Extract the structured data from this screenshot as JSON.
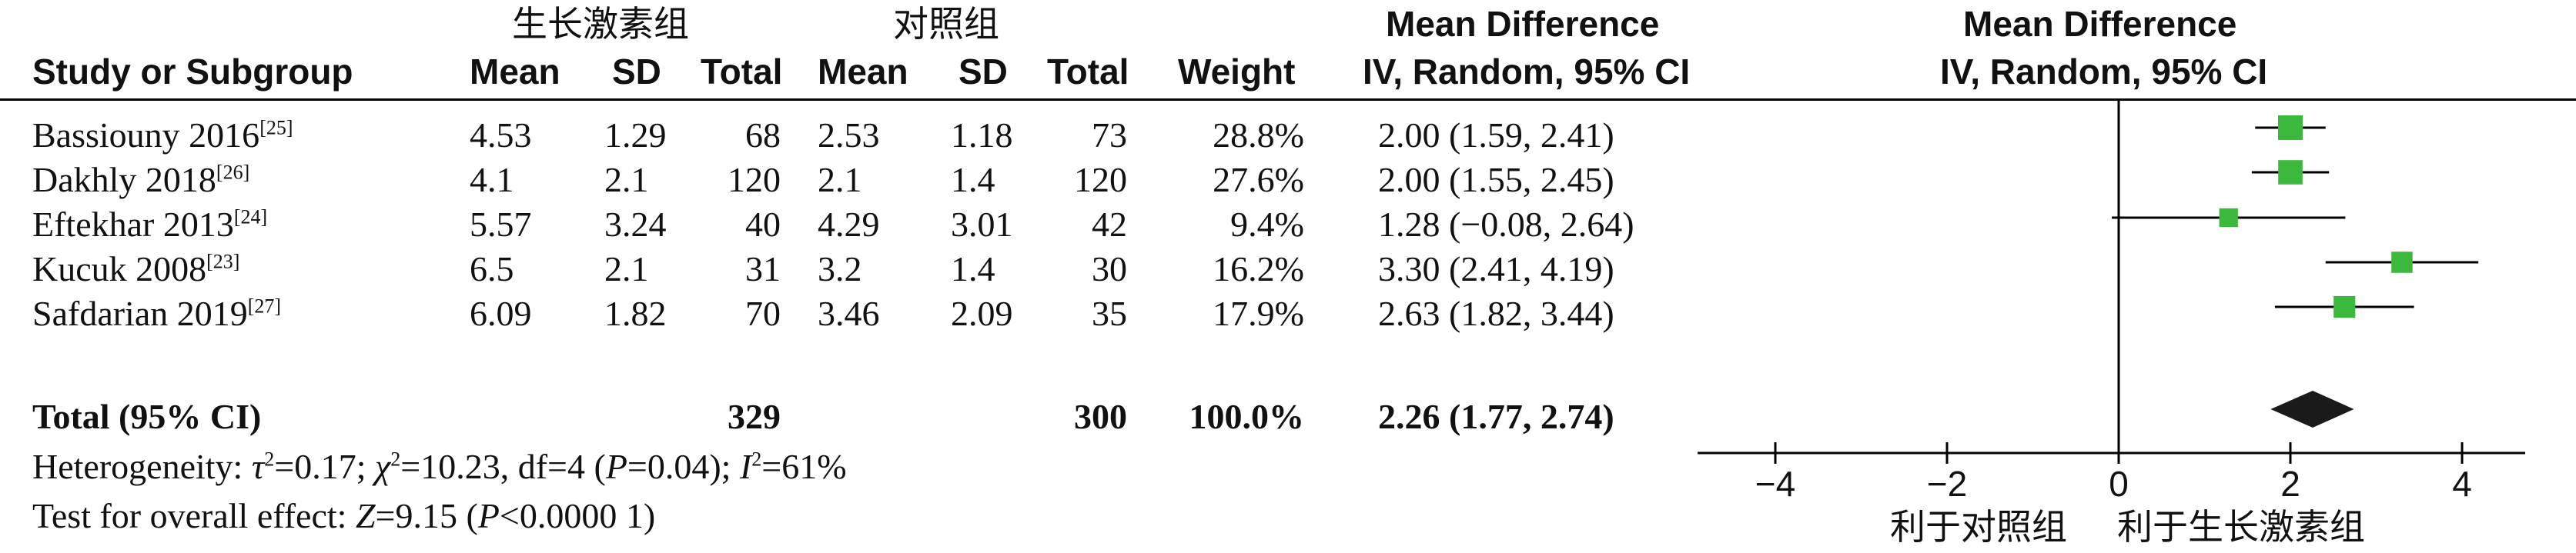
{
  "header": {
    "group1": "生长激素组",
    "group2": "对照组",
    "col_study": "Study or Subgroup",
    "col_mean1": "Mean",
    "col_sd1": "SD",
    "col_total1": "Total",
    "col_mean2": "Mean",
    "col_sd2": "SD",
    "col_total2": "Total",
    "col_weight": "Weight",
    "md_title": "Mean Difference",
    "md_method": "IV, Random, 95% CI",
    "plot_title": "Mean Difference",
    "plot_method": "IV, Random, 95% CI"
  },
  "studies": [
    {
      "name": "Bassiouny 2016",
      "ref": "[25]",
      "mean1": "4.53",
      "sd1": "1.29",
      "total1": "68",
      "mean2": "2.53",
      "sd2": "1.18",
      "total2": "73",
      "weight": "28.8%",
      "ci_text": "2.00 (1.59, 2.41)"
    },
    {
      "name": "Dakhly 2018",
      "ref": "[26]",
      "mean1": "4.1",
      "sd1": "2.1",
      "total1": "120",
      "mean2": "2.1",
      "sd2": "1.4",
      "total2": "120",
      "weight": "27.6%",
      "ci_text": "2.00 (1.55, 2.45)"
    },
    {
      "name": "Eftekhar 2013",
      "ref": "[24]",
      "mean1": "5.57",
      "sd1": "3.24",
      "total1": "40",
      "mean2": "4.29",
      "sd2": "3.01",
      "total2": "42",
      "weight": "9.4%",
      "ci_text": "1.28 (−0.08, 2.64)"
    },
    {
      "name": "Kucuk 2008",
      "ref": "[23]",
      "mean1": "6.5",
      "sd1": "2.1",
      "total1": "31",
      "mean2": "3.2",
      "sd2": "1.4",
      "total2": "30",
      "weight": "16.2%",
      "ci_text": "3.30 (2.41, 4.19)"
    },
    {
      "name": "Safdarian 2019",
      "ref": "[27]",
      "mean1": "6.09",
      "sd1": "1.82",
      "total1": "70",
      "mean2": "3.46",
      "sd2": "2.09",
      "total2": "35",
      "weight": "17.9%",
      "ci_text": "2.63 (1.82, 3.44)"
    }
  ],
  "total": {
    "label": "Total (95% CI)",
    "total1": "329",
    "total2": "300",
    "weight": "100.0%",
    "ci_text": "2.26 (1.77, 2.74)"
  },
  "heterogeneity": {
    "prefix": "Heterogeneity: ",
    "tau_sym": "τ",
    "tau_val": "=0.17; ",
    "chi_sym": "χ",
    "chi_val": "=10.23, df=4 (",
    "p_sym": "P",
    "p_val": "=0.04); ",
    "i_sym": "I",
    "i_val": "=61%",
    "sq": "2"
  },
  "overall_effect": {
    "prefix": "Test for overall effect: ",
    "z_sym": "Z",
    "z_val": "=9.15 (",
    "p_sym": "P",
    "p_val": "<0.0000 1)"
  },
  "favours": {
    "left": "利于对照组",
    "right": "利于生长激素组"
  },
  "colors": {
    "marker": "#3cb83c",
    "diamond": "#1a1a1a",
    "line": "#000000"
  },
  "chart_data": {
    "type": "forest",
    "xlim": [
      -4,
      4
    ],
    "xticks": [
      -4,
      -2,
      0,
      2,
      4
    ],
    "tick_labels": [
      "−4",
      "−2",
      "0",
      "2",
      "4"
    ],
    "studies": [
      {
        "name": "Bassiouny 2016",
        "md": 2.0,
        "lo": 1.59,
        "hi": 2.41,
        "weight": 28.8
      },
      {
        "name": "Dakhly 2018",
        "md": 2.0,
        "lo": 1.55,
        "hi": 2.45,
        "weight": 27.6
      },
      {
        "name": "Eftekhar 2013",
        "md": 1.28,
        "lo": -0.08,
        "hi": 2.64,
        "weight": 9.4
      },
      {
        "name": "Kucuk 2008",
        "md": 3.3,
        "lo": 2.41,
        "hi": 4.19,
        "weight": 16.2
      },
      {
        "name": "Safdarian 2019",
        "md": 2.63,
        "lo": 1.82,
        "hi": 3.44,
        "weight": 17.9
      }
    ],
    "pooled": {
      "md": 2.26,
      "lo": 1.77,
      "hi": 2.74
    }
  }
}
